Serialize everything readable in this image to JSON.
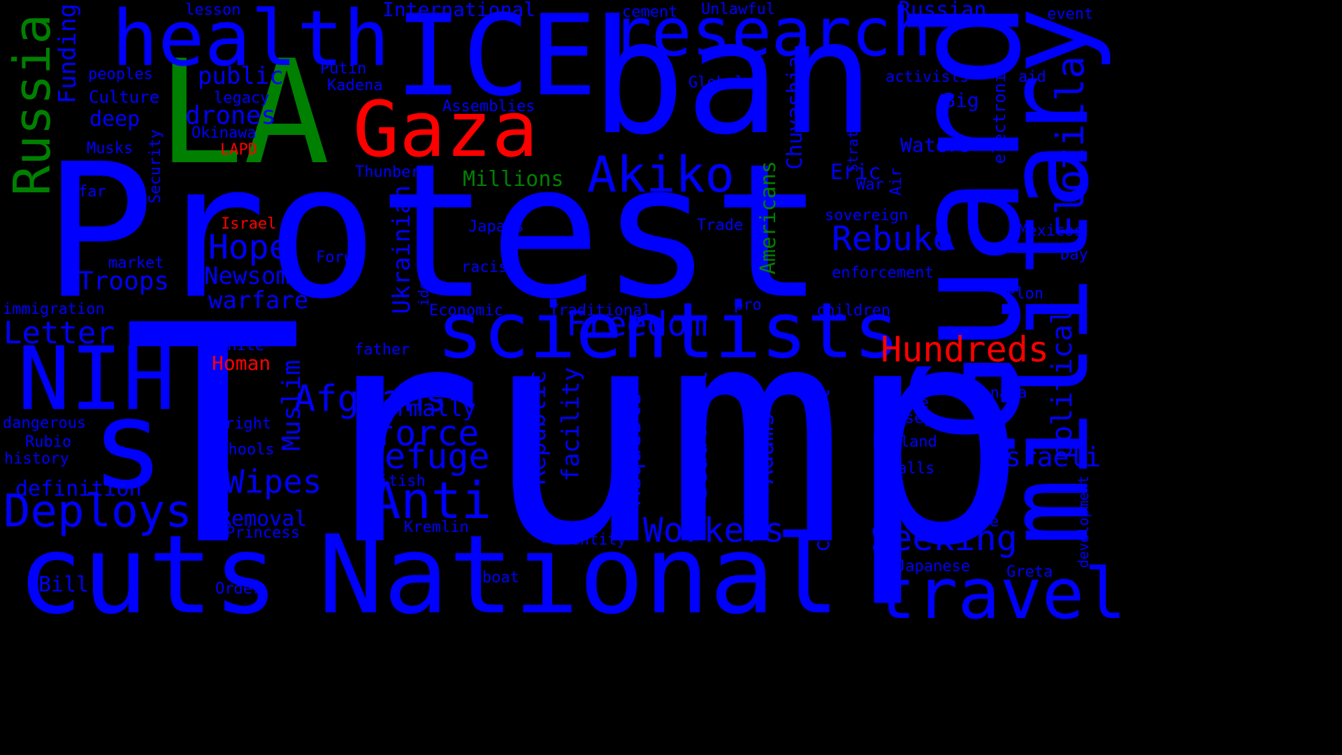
{
  "colors": {
    "background": "#000000",
    "blue": "#0000ff",
    "green": "#008000",
    "red": "#ff0000"
  },
  "words": [
    {
      "text": "Trump",
      "color": "blue"
    },
    {
      "text": "Protest",
      "color": "blue"
    },
    {
      "text": "ban",
      "color": "blue"
    },
    {
      "text": "LA",
      "color": "green"
    },
    {
      "text": "ICE",
      "color": "blue"
    },
    {
      "text": "National",
      "color": "blue"
    },
    {
      "text": "cuts",
      "color": "blue"
    },
    {
      "text": "health",
      "color": "blue"
    },
    {
      "text": "Gaza",
      "color": "red"
    },
    {
      "text": "research",
      "color": "blue"
    },
    {
      "text": "scientists",
      "color": "blue"
    },
    {
      "text": "Guard",
      "color": "blue"
    },
    {
      "text": "military",
      "color": "blue"
    },
    {
      "text": "travel",
      "color": "blue"
    },
    {
      "text": "NIH",
      "color": "blue"
    },
    {
      "text": "s",
      "color": "blue"
    },
    {
      "text": "Russia",
      "color": "green"
    },
    {
      "text": "Akiko",
      "color": "blue"
    },
    {
      "text": "Deploys",
      "color": "blue"
    },
    {
      "text": "Anti",
      "color": "blue"
    },
    {
      "text": "Hundreds",
      "color": "red"
    },
    {
      "text": "Freedom",
      "color": "blue"
    },
    {
      "text": "Afghans",
      "color": "blue"
    },
    {
      "text": "Workers",
      "color": "blue"
    },
    {
      "text": "Seeking",
      "color": "blue"
    },
    {
      "text": "Refuge",
      "color": "blue"
    },
    {
      "text": "force",
      "color": "blue"
    },
    {
      "text": "Wipes",
      "color": "blue"
    },
    {
      "text": "Letter",
      "color": "blue"
    },
    {
      "text": "Hope",
      "color": "blue"
    },
    {
      "text": "Rebuke",
      "color": "blue"
    },
    {
      "text": "Flotilla",
      "color": "blue"
    },
    {
      "text": "political",
      "color": "blue"
    },
    {
      "text": "Israeli",
      "color": "blue"
    },
    {
      "text": "Funding",
      "color": "blue"
    },
    {
      "text": "drones",
      "color": "blue"
    },
    {
      "text": "public",
      "color": "blue"
    },
    {
      "text": "Newsom",
      "color": "blue"
    },
    {
      "text": "Troops",
      "color": "blue"
    },
    {
      "text": "warfare",
      "color": "blue"
    },
    {
      "text": "Muslim",
      "color": "blue"
    },
    {
      "text": "Ukrainian",
      "color": "blue"
    },
    {
      "text": "Republic",
      "color": "blue"
    },
    {
      "text": "facility",
      "color": "blue"
    },
    {
      "text": "Requests",
      "color": "blue"
    },
    {
      "text": "Beautiful",
      "color": "blue"
    },
    {
      "text": "Adams",
      "color": "blue"
    },
    {
      "text": "controversial",
      "color": "blue"
    },
    {
      "text": "Americans",
      "color": "green"
    },
    {
      "text": "Chuvashia",
      "color": "blue"
    },
    {
      "text": "Eric",
      "color": "blue"
    },
    {
      "text": "Millions",
      "color": "green"
    },
    {
      "text": "Formally",
      "color": "blue"
    },
    {
      "text": "Removal",
      "color": "blue"
    },
    {
      "text": "definition",
      "color": "blue"
    },
    {
      "text": "Bill",
      "color": "blue"
    },
    {
      "text": "Russian",
      "color": "blue"
    },
    {
      "text": "International",
      "color": "blue"
    },
    {
      "text": "Waters",
      "color": "blue"
    },
    {
      "text": "Big",
      "color": "blue"
    },
    {
      "text": "electronic",
      "color": "blue"
    },
    {
      "text": "Homan",
      "color": "red"
    },
    {
      "text": "deep",
      "color": "blue"
    },
    {
      "text": "Culture",
      "color": "blue"
    },
    {
      "text": "peoples",
      "color": "blue"
    },
    {
      "text": "Musks",
      "color": "blue"
    },
    {
      "text": "Security",
      "color": "blue"
    },
    {
      "text": "far",
      "color": "blue"
    },
    {
      "text": "market",
      "color": "blue"
    },
    {
      "text": "immigration",
      "color": "blue"
    },
    {
      "text": "dangerous",
      "color": "blue"
    },
    {
      "text": "Rubio",
      "color": "blue"
    },
    {
      "text": "history",
      "color": "blue"
    },
    {
      "text": "White",
      "color": "blue"
    },
    {
      "text": "right",
      "color": "blue"
    },
    {
      "text": "schools",
      "color": "blue"
    },
    {
      "text": "British",
      "color": "blue"
    },
    {
      "text": "Princess",
      "color": "blue"
    },
    {
      "text": "Order",
      "color": "blue"
    },
    {
      "text": "Kremlin",
      "color": "blue"
    },
    {
      "text": "identity",
      "color": "blue"
    },
    {
      "text": "boat",
      "color": "blue"
    },
    {
      "text": "Economic",
      "color": "blue"
    },
    {
      "text": "Traditional",
      "color": "blue"
    },
    {
      "text": "pro",
      "color": "blue"
    },
    {
      "text": "children",
      "color": "blue"
    },
    {
      "text": "enforcement",
      "color": "blue"
    },
    {
      "text": "sovereign",
      "color": "blue"
    },
    {
      "text": "Trade",
      "color": "blue"
    },
    {
      "text": "War",
      "color": "blue"
    },
    {
      "text": "Air",
      "color": "blue"
    },
    {
      "text": "Strategy",
      "color": "blue"
    },
    {
      "text": "Global",
      "color": "blue"
    },
    {
      "text": "activists",
      "color": "blue"
    },
    {
      "text": "aid",
      "color": "blue"
    },
    {
      "text": "Mexicos",
      "color": "blue"
    },
    {
      "text": "Day",
      "color": "blue"
    },
    {
      "text": "Elon",
      "color": "blue"
    },
    {
      "text": "Canada",
      "color": "blue"
    },
    {
      "text": "Base",
      "color": "blue"
    },
    {
      "text": "Jersey",
      "color": "blue"
    },
    {
      "text": "England",
      "color": "blue"
    },
    {
      "text": "Calls",
      "color": "blue"
    },
    {
      "text": "Hole",
      "color": "blue"
    },
    {
      "text": "Japanese",
      "color": "blue"
    },
    {
      "text": "Greta",
      "color": "blue"
    },
    {
      "text": "development",
      "color": "blue"
    },
    {
      "text": "event",
      "color": "blue"
    },
    {
      "text": "Unlawful",
      "color": "blue"
    },
    {
      "text": "cement",
      "color": "blue"
    },
    {
      "text": "lesson",
      "color": "blue"
    },
    {
      "text": "Putin",
      "color": "blue"
    },
    {
      "text": "Kadena",
      "color": "blue"
    },
    {
      "text": "legacy",
      "color": "blue"
    },
    {
      "text": "Okinawa",
      "color": "blue"
    },
    {
      "text": "LAPD",
      "color": "red"
    },
    {
      "text": "Assemblies",
      "color": "blue"
    },
    {
      "text": "Thunberg",
      "color": "blue"
    },
    {
      "text": "Israel",
      "color": "red"
    },
    {
      "text": "Forum",
      "color": "blue"
    },
    {
      "text": "Japans",
      "color": "blue"
    },
    {
      "text": "racism",
      "color": "blue"
    },
    {
      "text": "ideologue",
      "color": "blue"
    },
    {
      "text": "father",
      "color": "blue"
    }
  ]
}
